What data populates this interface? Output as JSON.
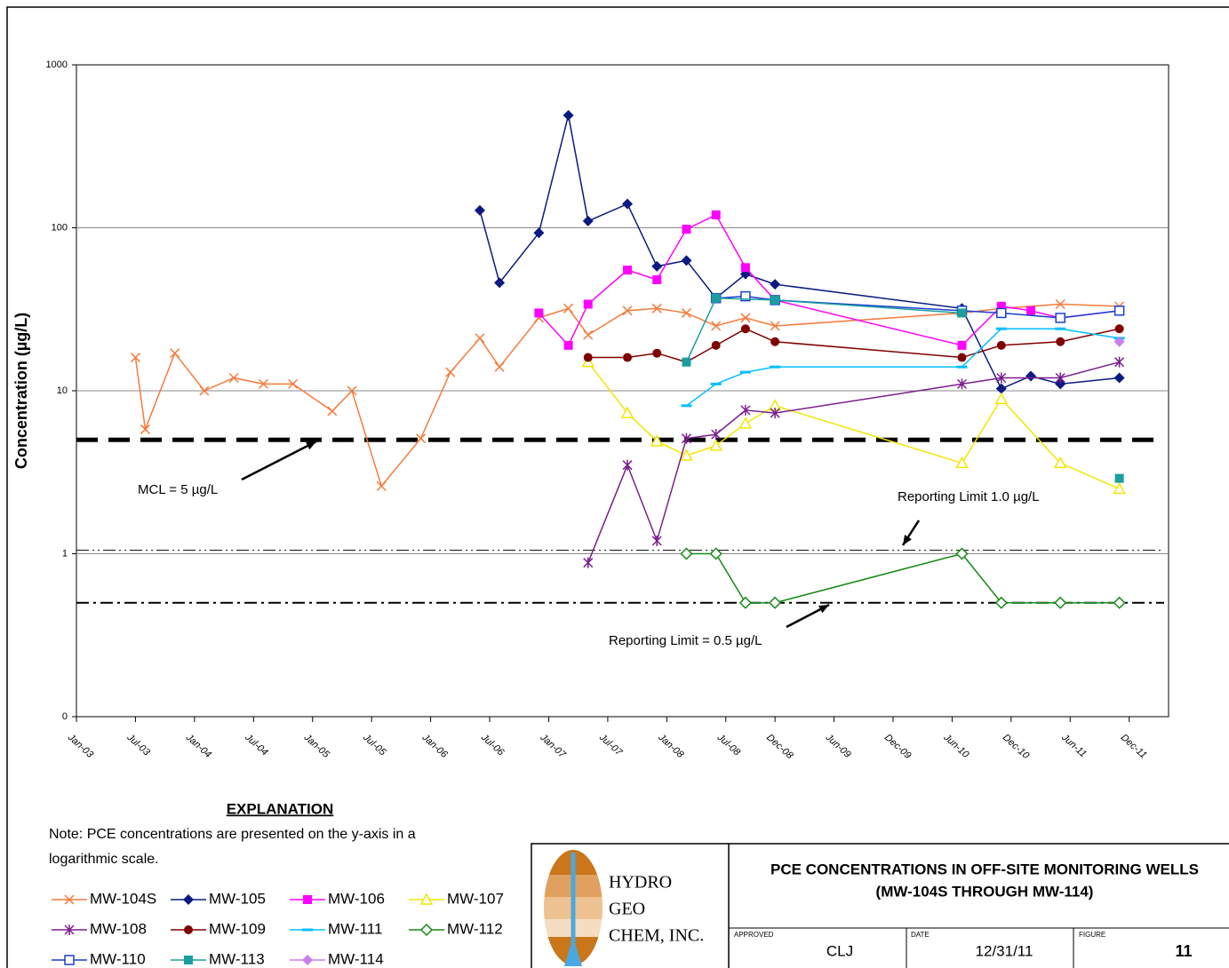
{
  "chart_data": {
    "type": "line",
    "y_label": "Concentration (µg/L)",
    "log_y": true,
    "grid": true,
    "xlim": [
      "2003-01",
      "2012-04"
    ],
    "ylim": [
      0.1,
      1000
    ],
    "yticks": [
      {
        "value": 0.1,
        "label": "0"
      },
      1,
      10,
      100,
      1000
    ],
    "xticks": [
      {
        "value": "2003-01",
        "label": "Jan-03"
      },
      {
        "value": "2003-07",
        "label": "Jul-03"
      },
      {
        "value": "2004-01",
        "label": "Jan-04"
      },
      {
        "value": "2004-07",
        "label": "Jul-04"
      },
      {
        "value": "2005-01",
        "label": "Jan-05"
      },
      {
        "value": "2005-07",
        "label": "Jul-05"
      },
      {
        "value": "2006-01",
        "label": "Jan-06"
      },
      {
        "value": "2006-07",
        "label": "Jul-06"
      },
      {
        "value": "2007-01",
        "label": "Jan-07"
      },
      {
        "value": "2007-07",
        "label": "Jul-07"
      },
      {
        "value": "2008-01",
        "label": "Jan-08"
      },
      {
        "value": "2008-07",
        "label": "Jul-08"
      },
      {
        "value": "2008-12",
        "label": "Dec-08"
      },
      {
        "value": "2009-06",
        "label": "Jun-09"
      },
      {
        "value": "2009-12",
        "label": "Dec-09"
      },
      {
        "value": "2010-06",
        "label": "Jun-10"
      },
      {
        "value": "2010-12",
        "label": "Dec-10"
      },
      {
        "value": "2011-06",
        "label": "Jun-11"
      },
      {
        "value": "2011-12",
        "label": "Dec-11"
      }
    ],
    "series": [
      {
        "name": "MW-104S",
        "color": "#f47b3c",
        "marker": "x",
        "x": [
          "2003-07",
          "2003-08",
          "2003-11",
          "2004-02",
          "2004-05",
          "2004-08",
          "2004-11",
          "2005-03",
          "2005-05",
          "2005-08",
          "2005-12",
          "2006-03",
          "2006-06",
          "2006-08",
          "2006-12",
          "2007-03",
          "2007-05",
          "2007-09",
          "2007-12",
          "2008-03",
          "2008-06",
          "2008-09",
          "2008-12",
          "2010-07",
          "2010-11",
          "2011-05",
          "2011-11"
        ],
        "values": [
          16,
          5.8,
          17,
          10,
          12,
          11,
          11,
          7.5,
          10,
          2.6,
          5.1,
          13,
          21,
          14,
          28,
          32,
          22,
          31,
          32,
          30,
          25,
          28,
          25,
          30,
          32,
          34,
          33
        ]
      },
      {
        "name": "MW-105",
        "color": "#0a1a80",
        "marker": "diamond",
        "x": [
          "2006-06",
          "2006-08",
          "2006-12",
          "2007-03",
          "2007-05",
          "2007-09",
          "2007-12",
          "2008-03",
          "2008-06",
          "2008-09",
          "2008-12",
          "2010-07",
          "2010-11",
          "2011-02",
          "2011-05",
          "2011-11"
        ],
        "values": [
          128,
          46,
          93,
          490,
          110,
          140,
          58,
          63,
          37,
          52,
          45,
          32,
          10.3,
          12.3,
          11,
          12
        ]
      },
      {
        "name": "MW-106",
        "color": "#ff00ff",
        "marker": "square",
        "x": [
          "2006-12",
          "2007-03",
          "2007-05",
          "2007-09",
          "2007-12",
          "2008-03",
          "2008-06",
          "2008-09",
          "2008-12",
          "2010-07",
          "2010-11",
          "2011-02",
          "2011-05",
          "2011-11"
        ],
        "values": [
          30,
          19,
          34,
          55,
          48,
          98,
          120,
          57,
          36,
          19,
          33,
          31,
          28,
          31
        ]
      },
      {
        "name": "MW-107",
        "color": "#f2e600",
        "marker": "triangle-open",
        "x": [
          "2007-05",
          "2007-09",
          "2007-12",
          "2008-03",
          "2008-06",
          "2008-09",
          "2008-12",
          "2010-07",
          "2010-11",
          "2011-05",
          "2011-11"
        ],
        "values": [
          15,
          7.3,
          4.9,
          4.0,
          4.6,
          6.3,
          8.1,
          3.6,
          8.9,
          3.6,
          2.5
        ]
      },
      {
        "name": "MW-108",
        "color": "#7b1f8e",
        "marker": "asterisk",
        "x": [
          "2007-05",
          "2007-09",
          "2007-12",
          "2008-03",
          "2008-06",
          "2008-09",
          "2008-12",
          "2010-07",
          "2010-11",
          "2011-05",
          "2011-11"
        ],
        "values": [
          0.88,
          3.5,
          1.2,
          5.1,
          5.4,
          7.6,
          7.3,
          11,
          12,
          12,
          15
        ]
      },
      {
        "name": "MW-109",
        "color": "#800000",
        "marker": "circle",
        "x": [
          "2007-05",
          "2007-09",
          "2007-12",
          "2008-03",
          "2008-06",
          "2008-09",
          "2008-12",
          "2010-07",
          "2010-11",
          "2011-05",
          "2011-11"
        ],
        "values": [
          16,
          16,
          17,
          15,
          19,
          24,
          20,
          16,
          19,
          20,
          24
        ]
      },
      {
        "name": "MW-111",
        "color": "#00bfff",
        "marker": "dash",
        "x": [
          "2008-03",
          "2008-06",
          "2008-09",
          "2008-12",
          "2010-07",
          "2010-11",
          "2011-05",
          "2011-11"
        ],
        "values": [
          8.1,
          11,
          13,
          14,
          14,
          24,
          24,
          21
        ]
      },
      {
        "name": "MW-112",
        "color": "#138a13",
        "marker": "diamond-open",
        "x": [
          "2008-03",
          "2008-06",
          "2008-09",
          "2008-12",
          "2010-07",
          "2010-11",
          "2011-05",
          "2011-11"
        ],
        "values": [
          1.0,
          1.0,
          0.5,
          0.5,
          1.0,
          0.5,
          0.5,
          0.5
        ]
      },
      {
        "name": "MW-110",
        "color": "#1a3fd0",
        "marker": "square-open",
        "x": [
          "2008-06",
          "2008-09",
          "2008-12",
          "2010-07",
          "2010-11",
          "2011-05",
          "2011-11"
        ],
        "values": [
          37,
          38,
          36,
          31,
          30,
          28,
          31
        ]
      },
      {
        "name": "MW-113",
        "color": "#1a9e9e",
        "marker": "square",
        "x": [
          "2008-03",
          "2008-06",
          "2008-12",
          "2010-07",
          "2011-05",
          "2011-11"
        ],
        "values": [
          15,
          37,
          36,
          30,
          null,
          2.9
        ]
      },
      {
        "name": "MW-114",
        "color": "#c77ff0",
        "marker": "star",
        "x": [
          "2011-11"
        ],
        "values": [
          20
        ]
      }
    ],
    "reference_lines": [
      {
        "value": 5,
        "label": "MCL = 5 µg/L",
        "style": "dash"
      },
      {
        "value": 1.05,
        "label": "Reporting Limit 1.0 µg/L",
        "style": "dashdot"
      },
      {
        "value": 0.5,
        "label": "Reporting Limit = 0.5 µg/L",
        "style": "dashdot-bold"
      }
    ]
  },
  "explanation": {
    "heading": "EXPLANATION",
    "note": [
      "Note: PCE concentrations are presented on the y-axis in a",
      "logarithmic scale."
    ]
  },
  "title_block": {
    "company": [
      "HYDRO",
      "GEO",
      "CHEM, INC."
    ],
    "title": [
      "PCE CONCENTRATIONS IN OFF-SITE MONITORING WELLS",
      "(MW-104S THROUGH MW-114)"
    ],
    "approved_label": "APPROVED",
    "approved": "CLJ",
    "date_label": "DATE",
    "date": "12/31/11",
    "figure_label": "FIGURE",
    "figure": "11"
  }
}
